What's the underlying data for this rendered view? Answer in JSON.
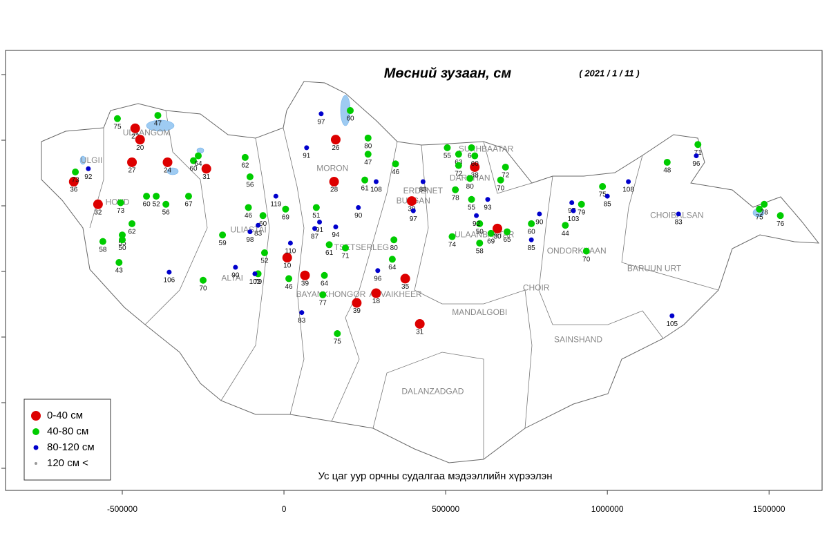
{
  "chart_data": {
    "type": "scatter",
    "title": "Мөсний зузаан, см",
    "subtitle": "( 2021 / 1 / 11 )",
    "caption": "Ус цаг уур орчны судалгаа мэдээллийн хүрээлэн",
    "xlim": [
      -861000,
      1664000
    ],
    "xticks": [
      -500000,
      0,
      500000,
      1000000,
      1500000
    ],
    "ylim": [
      0,
      1361000
    ],
    "legend": "bottom-left",
    "series": [
      {
        "name": "0-40 см",
        "color": "#dd0000",
        "x": [
          -460000,
          -445000,
          -470000,
          -360000,
          -240000,
          -650000,
          -575000,
          160000,
          155000,
          395000,
          590000,
          10000,
          65000,
          375000,
          225000,
          420000,
          660000,
          285000
        ],
        "y": [
          1120000,
          1085000,
          1015000,
          1015000,
          995000,
          955000,
          885000,
          1085000,
          955000,
          895000,
          1000000,
          720000,
          665000,
          655000,
          580000,
          515000,
          810000,
          610000
        ],
        "values": [
          22,
          20,
          27,
          24,
          31,
          36,
          32,
          26,
          28,
          39,
          38,
          10,
          39,
          35,
          39,
          31,
          30,
          18
        ]
      },
      {
        "name": "40-80 см",
        "color": "#00cc00",
        "x": [
          -515000,
          -390000,
          -280000,
          -265000,
          -645000,
          -505000,
          -425000,
          -395000,
          -365000,
          -295000,
          -120000,
          -105000,
          -110000,
          -65000,
          5000,
          -190000,
          -500000,
          -500000,
          -470000,
          -560000,
          -510000,
          -250000,
          -60000,
          -80000,
          15000,
          125000,
          120000,
          165000,
          100000,
          140000,
          190000,
          340000,
          335000,
          205000,
          260000,
          260000,
          250000,
          345000,
          505000,
          540000,
          580000,
          590000,
          540000,
          575000,
          685000,
          670000,
          530000,
          580000,
          605000,
          605000,
          520000,
          690000,
          640000,
          765000,
          870000,
          920000,
          985000,
          935000,
          1185000,
          1280000,
          1470000,
          1485000,
          1535000
        ],
        "y": [
          1150000,
          1160000,
          1020000,
          1035000,
          985000,
          890000,
          910000,
          910000,
          885000,
          910000,
          1030000,
          970000,
          875000,
          850000,
          870000,
          790000,
          790000,
          775000,
          825000,
          770000,
          705000,
          650000,
          735000,
          670000,
          655000,
          665000,
          605000,
          485000,
          875000,
          760000,
          750000,
          775000,
          715000,
          1175000,
          1090000,
          1040000,
          960000,
          1010000,
          1060000,
          1040000,
          1060000,
          1035000,
          1005000,
          965000,
          1000000,
          960000,
          930000,
          900000,
          825000,
          765000,
          785000,
          800000,
          795000,
          825000,
          820000,
          885000,
          940000,
          740000,
          1015000,
          1070000,
          870000,
          885000,
          850000
        ],
        "values": [
          75,
          47,
          60,
          64,
          73,
          73,
          60,
          52,
          56,
          67,
          62,
          56,
          46,
          60,
          69,
          59,
          55,
          50,
          62,
          58,
          43,
          70,
          52,
          79,
          46,
          64,
          77,
          75,
          51,
          61,
          71,
          80,
          64,
          60,
          80,
          47,
          61,
          46,
          55,
          63,
          66,
          60,
          72,
          80,
          72,
          70,
          78,
          55,
          50,
          58,
          74,
          65,
          69,
          60,
          44,
          79,
          75,
          70,
          48,
          71,
          75,
          78,
          76
        ]
      },
      {
        "name": "80-120 см",
        "color": "#0000cc",
        "x": [
          115000,
          70000,
          285000,
          430000,
          230000,
          110000,
          160000,
          95000,
          20000,
          -25000,
          -80000,
          -105000,
          -150000,
          -90000,
          -355000,
          290000,
          55000,
          630000,
          595000,
          790000,
          765000,
          890000,
          895000,
          1065000,
          1275000,
          1220000,
          1200000,
          -605000,
          400000,
          1000000
        ],
        "y": [
          1165000,
          1060000,
          955000,
          955000,
          875000,
          830000,
          815000,
          810000,
          765000,
          910000,
          820000,
          800000,
          690000,
          670000,
          675000,
          680000,
          550000,
          900000,
          850000,
          855000,
          775000,
          890000,
          865000,
          955000,
          1035000,
          855000,
          540000,
          995000,
          865000,
          910000
        ],
        "values": [
          97,
          91,
          108,
          88,
          90,
          91,
          94,
          87,
          110,
          119,
          83,
          98,
          90,
          102,
          106,
          96,
          83,
          93,
          92,
          90,
          85,
          97,
          103,
          108,
          96,
          83,
          105,
          92,
          97,
          85
        ]
      },
      {
        "name": "120 см <",
        "color": "#999999",
        "x": [],
        "y": [],
        "values": []
      }
    ],
    "cities": [
      {
        "name": "ULAANGOM",
        "x": -425000,
        "y": 1105000
      },
      {
        "name": "ULGII",
        "x": -595000,
        "y": 1020000
      },
      {
        "name": "HOVD",
        "x": -515000,
        "y": 890000
      },
      {
        "name": "ULIASTAI",
        "x": -110000,
        "y": 805000
      },
      {
        "name": "MORON",
        "x": 150000,
        "y": 995000
      },
      {
        "name": "ERDENET",
        "x": 430000,
        "y": 925000
      },
      {
        "name": "BULGAN",
        "x": 400000,
        "y": 895000
      },
      {
        "name": "SUKHBAATAR",
        "x": 625000,
        "y": 1055000
      },
      {
        "name": "DARKHAN",
        "x": 575000,
        "y": 965000
      },
      {
        "name": "ULAANBAATAR",
        "x": 620000,
        "y": 790000
      },
      {
        "name": "TSETSERLEG",
        "x": 240000,
        "y": 750000
      },
      {
        "name": "ALTAI",
        "x": -160000,
        "y": 655000
      },
      {
        "name": "BAYANKHONGOR",
        "x": 145000,
        "y": 605000
      },
      {
        "name": "ARVAIKHEER",
        "x": 345000,
        "y": 605000
      },
      {
        "name": "MANDALGOBI",
        "x": 605000,
        "y": 550000
      },
      {
        "name": "CHOIR",
        "x": 780000,
        "y": 625000
      },
      {
        "name": "ONDORKHAAN",
        "x": 905000,
        "y": 740000
      },
      {
        "name": "BARUUN URT",
        "x": 1145000,
        "y": 685000
      },
      {
        "name": "CHOIBALSAN",
        "x": 1215000,
        "y": 850000
      },
      {
        "name": "SAINSHAND",
        "x": 910000,
        "y": 465000
      },
      {
        "name": "DALANZADGAD",
        "x": 460000,
        "y": 305000
      }
    ]
  }
}
